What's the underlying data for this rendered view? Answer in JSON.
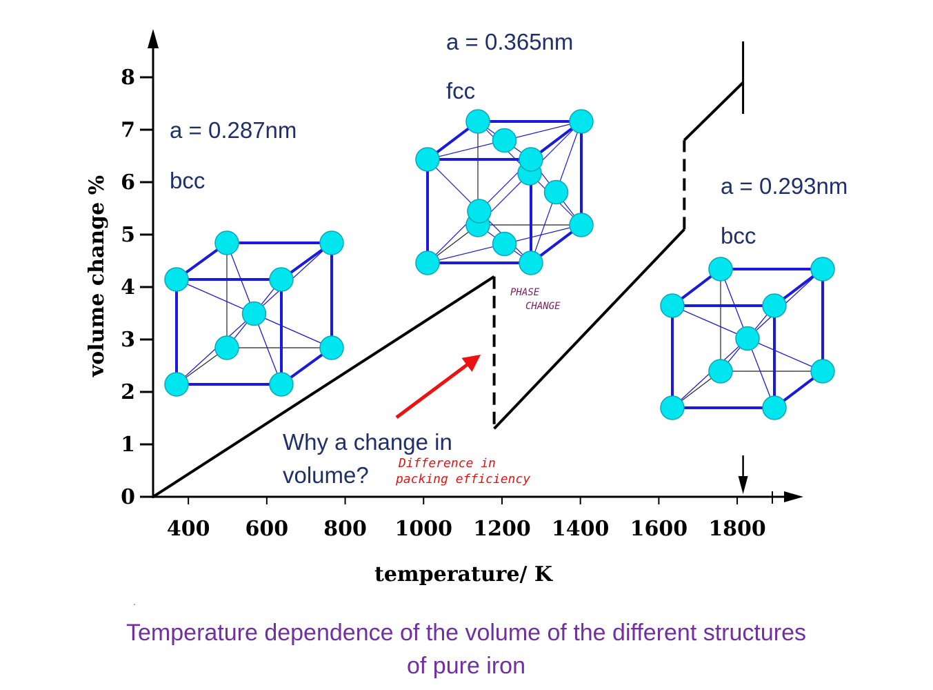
{
  "chart_data": {
    "type": "line",
    "xlabel": "temperature/ K",
    "ylabel": "volume change %",
    "xlim": [
      300,
      1900
    ],
    "ylim": [
      0,
      9
    ],
    "x_ticks": [
      "400",
      "600",
      "800",
      "1000",
      "1200",
      "1400",
      "1600",
      "1800"
    ],
    "x_tick_values": [
      400,
      600,
      800,
      1000,
      1200,
      1400,
      1600,
      1800
    ],
    "y_ticks": [
      "0",
      "1",
      "2",
      "3",
      "4",
      "5",
      "6",
      "7",
      "8"
    ],
    "y_tick_values": [
      0,
      1,
      2,
      3,
      4,
      5,
      6,
      7,
      8
    ],
    "grid": false,
    "legend": "none",
    "segments": [
      {
        "phase": "bcc (alpha)",
        "style": "solid",
        "x": [
          310,
          1180
        ],
        "y": [
          0.0,
          4.2
        ]
      },
      {
        "phase": "transition",
        "style": "dashed",
        "x": [
          1180,
          1180
        ],
        "y": [
          4.2,
          1.3
        ]
      },
      {
        "phase": "fcc (gamma)",
        "style": "solid",
        "x": [
          1180,
          1665
        ],
        "y": [
          1.3,
          5.1
        ]
      },
      {
        "phase": "transition",
        "style": "dashed",
        "x": [
          1665,
          1665
        ],
        "y": [
          5.1,
          6.8
        ]
      },
      {
        "phase": "bcc (delta)",
        "style": "solid",
        "x": [
          1665,
          1815
        ],
        "y": [
          6.8,
          7.9
        ]
      }
    ],
    "melting_marker_x": 1815,
    "color": "#000000"
  },
  "annotations": {
    "bcc_left": {
      "lattice": "a = 0.287nm",
      "structure": "bcc"
    },
    "fcc_mid": {
      "lattice": "a = 0.365nm",
      "structure": "fcc"
    },
    "bcc_right": {
      "lattice": "a = 0.293nm",
      "structure": "bcc"
    },
    "phase_change": [
      "PHASE",
      "CHANGE"
    ],
    "question": [
      "Why a change in",
      "volume?"
    ],
    "answer": [
      "Difference in",
      "packing efficiency"
    ]
  },
  "caption": [
    "Temperature dependence of the volume of the different structures",
    "of pure iron"
  ],
  "colors": {
    "text_navy": "#1f2f6b",
    "atom_fill": "#00e5ee",
    "cube_edge": "#1a1adf",
    "arrow": "#ee1111",
    "answer_text": "#e01515",
    "phase_text": "#7a1f5a",
    "caption": "#7030a0"
  }
}
